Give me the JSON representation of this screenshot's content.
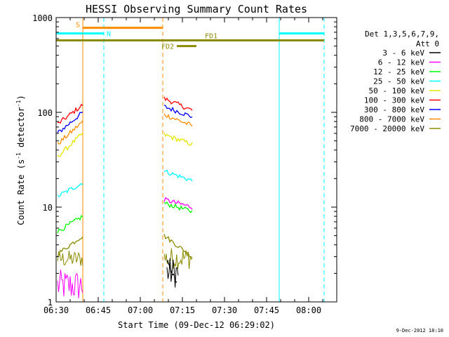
{
  "chart_data": {
    "type": "line",
    "title": "HESSI Observing Summary Count Rates",
    "xlabel": "Start Time (09-Dec-12 06:29:02)",
    "ylabel_parts": [
      "Count Rate (s",
      "-1",
      " detector",
      "-1",
      ")"
    ],
    "x_units": "minutes after 06:30 UT",
    "xlim": [
      0,
      100
    ],
    "ylim": [
      1,
      1000
    ],
    "yscale": "log",
    "x_ticks": [
      {
        "x": 0,
        "label": "06:30"
      },
      {
        "x": 15,
        "label": "06:45"
      },
      {
        "x": 30,
        "label": "07:00"
      },
      {
        "x": 45,
        "label": "07:15"
      },
      {
        "x": 60,
        "label": "07:30"
      },
      {
        "x": 75,
        "label": "07:45"
      },
      {
        "x": 90,
        "label": "08:00"
      }
    ],
    "y_ticks": [
      {
        "y": 1,
        "label": "1"
      },
      {
        "y": 10,
        "label": "10"
      },
      {
        "y": 100,
        "label": "100"
      },
      {
        "y": 1000,
        "label": "1000"
      }
    ],
    "legend": {
      "position": "top-right",
      "header": [
        "Det 1,3,5,6,7,9,",
        "Att 0"
      ],
      "entries": [
        {
          "label": "3 - 6 keV",
          "color": "#000000"
        },
        {
          "label": "6 - 12 keV",
          "color": "#ff00ff"
        },
        {
          "label": "12 - 25 keV",
          "color": "#00ff00"
        },
        {
          "label": "25 - 50 keV",
          "color": "#00ffff"
        },
        {
          "label": "50 - 100 keV",
          "color": "#e6e600"
        },
        {
          "label": "100 - 300 keV",
          "color": "#ff0000"
        },
        {
          "label": "300 - 800 keV",
          "color": "#0000ff"
        },
        {
          "label": "800 - 7000 keV",
          "color": "#ff8c00"
        },
        {
          "label": "7000 - 20000 keV",
          "color": "#8b8b00"
        }
      ]
    },
    "series": [
      {
        "color": "#ff0000",
        "segments": [
          {
            "x0": 0.5,
            "x1": 9.5,
            "y_start": 75,
            "y_end": 120
          },
          {
            "x0": 38.5,
            "x1": 48.5,
            "y_start": 140,
            "y_end": 105
          }
        ]
      },
      {
        "color": "#0000ff",
        "segments": [
          {
            "x0": 0.5,
            "x1": 9.5,
            "y_start": 60,
            "y_end": 100
          },
          {
            "x0": 38.5,
            "x1": 48.5,
            "y_start": 115,
            "y_end": 90
          }
        ]
      },
      {
        "color": "#ff8c00",
        "segments": [
          {
            "x0": 0.5,
            "x1": 9.5,
            "y_start": 46,
            "y_end": 80
          },
          {
            "x0": 38.5,
            "x1": 48.5,
            "y_start": 95,
            "y_end": 72
          }
        ]
      },
      {
        "color": "#e6e600",
        "segments": [
          {
            "x0": 0.5,
            "x1": 9.5,
            "y_start": 34,
            "y_end": 60
          },
          {
            "x0": 38.5,
            "x1": 48.5,
            "y_start": 58,
            "y_end": 46
          }
        ]
      },
      {
        "color": "#00ffff",
        "segments": [
          {
            "x0": 0.5,
            "x1": 9.5,
            "y_start": 13,
            "y_end": 18
          },
          {
            "x0": 38.5,
            "x1": 48.5,
            "y_start": 24,
            "y_end": 19
          }
        ]
      },
      {
        "color": "#ff00ff",
        "segments": [
          {
            "x0": 38.5,
            "x1": 48.5,
            "y_start": 12,
            "y_end": 10
          }
        ]
      },
      {
        "color": "#00ff00",
        "segments": [
          {
            "x0": 0.5,
            "x1": 9.5,
            "y_start": 5.5,
            "y_end": 8
          },
          {
            "x0": 38.5,
            "x1": 48.5,
            "y_start": 11,
            "y_end": 9
          }
        ]
      },
      {
        "color": "#8b8b00",
        "segments": [
          {
            "x0": 0.5,
            "x1": 9.5,
            "y_start": 3.2,
            "y_end": 5
          },
          {
            "x0": 38.5,
            "x1": 48.5,
            "y_start": 5,
            "y_end": 3
          }
        ]
      },
      {
        "color": "#000000",
        "segments": [
          {
            "x0": 39.5,
            "x1": 43,
            "y_start": 2.8,
            "y_end": 1.6
          }
        ]
      }
    ],
    "noise_bands": [
      {
        "color": "#ff00ff",
        "x0": 0.5,
        "x1": 9.5,
        "y_low": 1,
        "y_high": 2.2
      },
      {
        "color": "#8b8b00",
        "x0": 0.5,
        "x1": 9.5,
        "y_low": 2.3,
        "y_high": 3.5
      },
      {
        "color": "#8b8b00",
        "x0": 38.5,
        "x1": 48.5,
        "y_low": 2.2,
        "y_high": 3.8
      },
      {
        "color": "#000000",
        "x0": 39.5,
        "x1": 43.5,
        "y_low": 1.4,
        "y_high": 3
      }
    ],
    "vertical_markers": [
      {
        "x": 0,
        "color": "#00ffff",
        "style": "solid"
      },
      {
        "x": 17,
        "color": "#00ffff",
        "style": "dashed"
      },
      {
        "x": 9.5,
        "color": "#ff8c00",
        "style": "solid"
      },
      {
        "x": 38,
        "color": "#ff8c00",
        "style": "dashed"
      },
      {
        "x": 79.5,
        "color": "#00ffff",
        "style": "solid"
      },
      {
        "x": 95.5,
        "color": "#00ffff",
        "style": "dashed"
      }
    ],
    "flag_bars": [
      {
        "label": "S",
        "color": "#ff8c00",
        "x0": 9.5,
        "x1": 38,
        "y": 780,
        "label_side": "left"
      },
      {
        "label": "N",
        "color": "#00ffff",
        "x0": 0,
        "x1": 17,
        "y": 680,
        "label_side": "right"
      },
      {
        "label": "N",
        "color": "#00ffff",
        "x0": 79.5,
        "x1": 95.5,
        "y": 680,
        "label_side": "none"
      },
      {
        "label": "FD1",
        "color": "#8b8b00",
        "x0": 0,
        "x1": 95.5,
        "y": 575,
        "label_side": "center"
      },
      {
        "label": "FD2",
        "color": "#8b8b00",
        "x0": 43,
        "x1": 50,
        "y": 500,
        "label_side": "left"
      }
    ],
    "footer_timestamp": "9-Dec-2012 18:10"
  }
}
